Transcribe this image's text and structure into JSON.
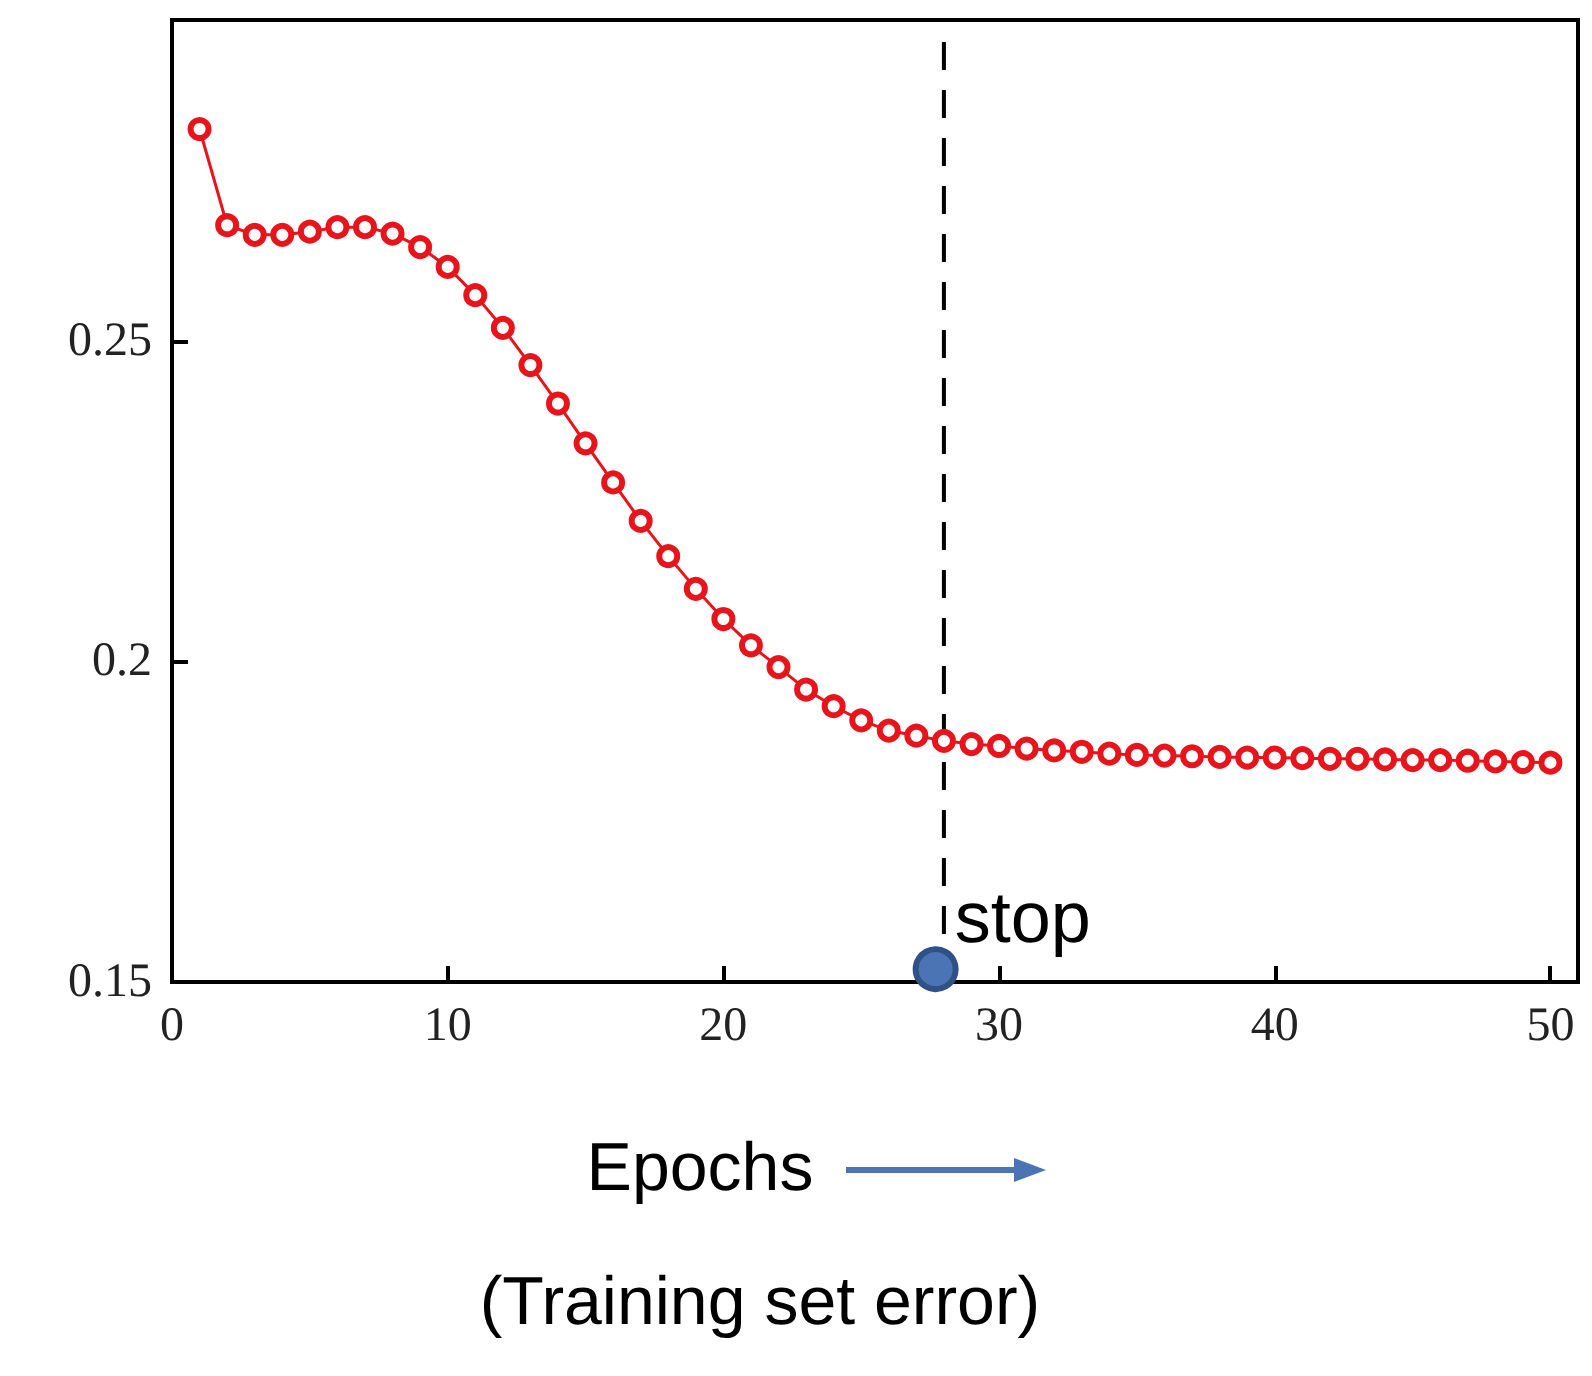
{
  "chart_data": {
    "type": "line",
    "xlabel": "Epochs",
    "annotations": [
      "(Training set error)",
      {
        "text": "stop",
        "x": 27.7,
        "y": 0.152
      }
    ],
    "x": [
      1,
      2,
      3,
      4,
      5,
      6,
      7,
      8,
      9,
      10,
      11,
      12,
      13,
      14,
      15,
      16,
      17,
      18,
      19,
      20,
      21,
      22,
      23,
      24,
      25,
      26,
      27,
      28,
      29,
      30,
      31,
      32,
      33,
      34,
      35,
      36,
      37,
      38,
      39,
      40,
      41,
      42,
      43,
      44,
      45,
      46,
      47,
      48,
      49,
      50
    ],
    "series": [
      {
        "color": "#e8141b",
        "values": [
          0.283,
          0.268,
          0.2665,
          0.2665,
          0.267,
          0.2677,
          0.2677,
          0.2667,
          0.2646,
          0.2615,
          0.2571,
          0.252,
          0.2462,
          0.2402,
          0.234,
          0.2279,
          0.2219,
          0.2164,
          0.2113,
          0.2066,
          0.2025,
          0.1991,
          0.1956,
          0.193,
          0.1908,
          0.1892,
          0.1884,
          0.1876,
          0.1871,
          0.1868,
          0.1864,
          0.1861,
          0.1859,
          0.1856,
          0.1854,
          0.1853,
          0.1852,
          0.1851,
          0.185,
          0.185,
          0.1849,
          0.1848,
          0.1848,
          0.1847,
          0.1846,
          0.1846,
          0.1845,
          0.1844,
          0.1843,
          0.1842
        ]
      },
      {
        "type": "scatter",
        "x": [
          27.7
        ],
        "color": "#4a74b4",
        "values": [
          0.152
        ]
      }
    ],
    "xlim": [
      0,
      51
    ],
    "xticks": [
      0,
      10,
      20,
      30,
      40,
      50
    ],
    "ylim": [
      0.15,
      0.3
    ],
    "yticks": [
      0.15,
      0.2,
      0.25
    ],
    "ref_lines": [
      {
        "axis": "x",
        "value": 28,
        "color": "#000000",
        "line_style": "dashed"
      }
    ],
    "marker": "circle",
    "line_style": "solid",
    "grid": false
  }
}
